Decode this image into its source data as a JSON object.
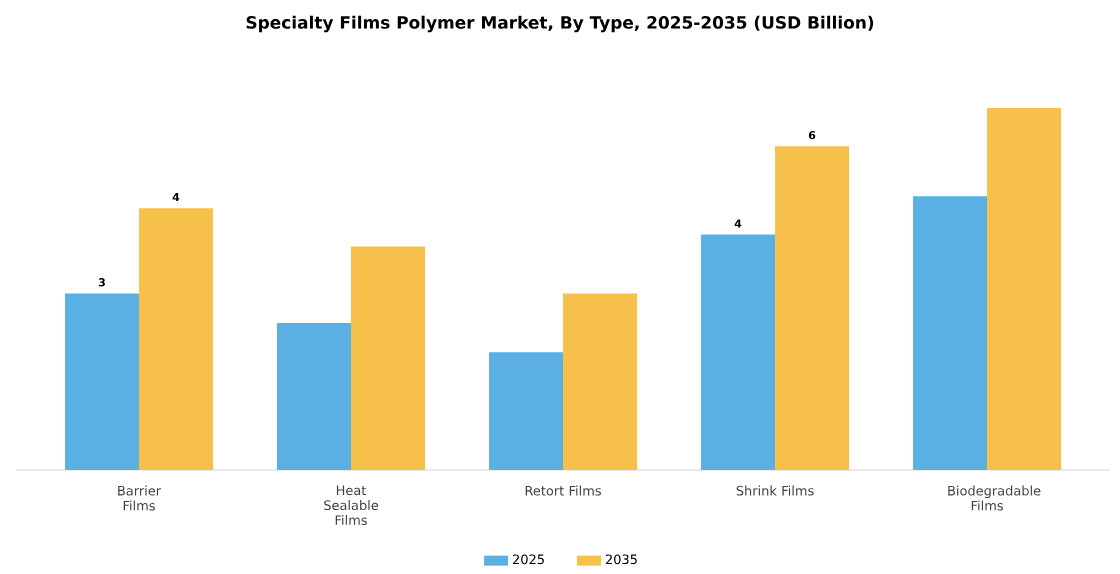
{
  "chart_data": {
    "type": "bar",
    "title": "Specialty Films Polymer Market, By Type, 2025-2035 (USD Billion)",
    "categories": [
      "Barrier Films",
      "Heat Sealable Films",
      "Retort Films",
      "Shrink Films",
      "Biodegradable Films"
    ],
    "series": [
      {
        "name": "2025",
        "color": "#5aafe3",
        "values": [
          3.0,
          2.5,
          2.0,
          4.0,
          4.65
        ],
        "value_labels": [
          "3",
          null,
          null,
          "4",
          null
        ]
      },
      {
        "name": "2035",
        "color": "#f7c04a",
        "values": [
          4.45,
          3.8,
          3.0,
          5.5,
          6.15
        ],
        "value_labels": [
          "4",
          null,
          null,
          "6",
          null
        ]
      }
    ],
    "legend": "bottom",
    "tick_labels": "x"
  }
}
